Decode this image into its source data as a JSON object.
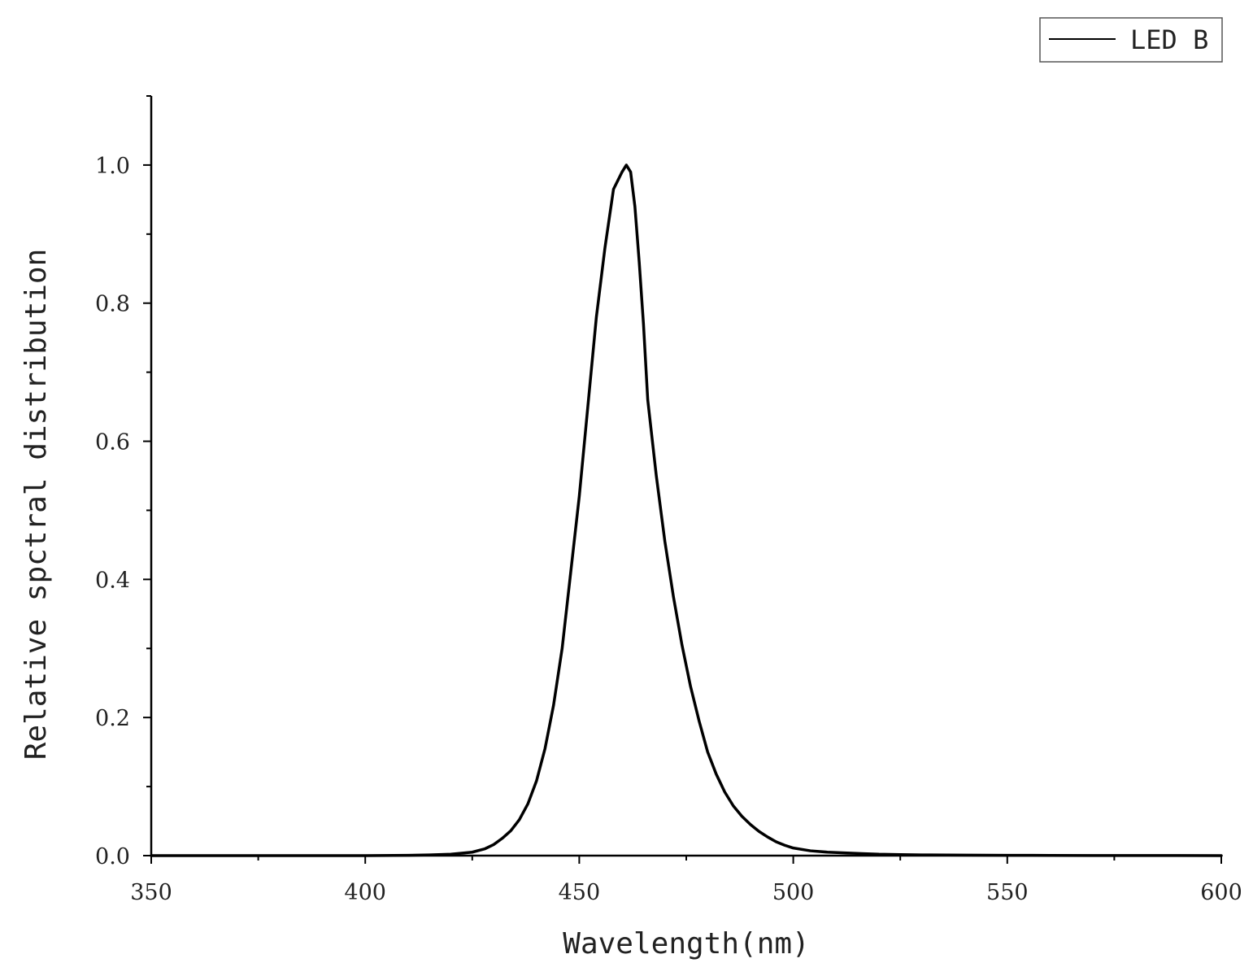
{
  "chart_data": {
    "type": "line",
    "xlabel": "Wavelength(nm)",
    "ylabel": "Relative spctral distribution",
    "xlim": [
      350,
      600
    ],
    "ylim": [
      0,
      1.1
    ],
    "x_ticks": [
      350,
      400,
      450,
      500,
      550,
      600
    ],
    "x_tick_labels": [
      "350",
      "400",
      "450",
      "500",
      "550",
      "600"
    ],
    "y_ticks": [
      0,
      0.2,
      0.4,
      0.6,
      0.8,
      1.0
    ],
    "y_tick_labels": [
      "0.0",
      "0.2",
      "0.4",
      "0.6",
      "0.8",
      "1.0"
    ],
    "grid": false,
    "legend_position": "top-right",
    "series": [
      {
        "name": "LED B",
        "color": "#000000",
        "x": [
          350,
          400,
          410,
          415,
          420,
          425,
          428,
          430,
          432,
          434,
          436,
          438,
          440,
          442,
          444,
          446,
          448,
          450,
          452,
          454,
          456,
          458,
          460,
          461,
          462,
          463,
          464,
          465,
          466,
          468,
          470,
          472,
          474,
          476,
          478,
          480,
          482,
          484,
          486,
          488,
          490,
          492,
          494,
          496,
          498,
          500,
          504,
          508,
          512,
          516,
          520,
          525,
          530,
          540,
          550,
          560,
          570,
          580,
          590,
          600
        ],
        "y": [
          0,
          0,
          0.0005,
          0.001,
          0.002,
          0.005,
          0.01,
          0.016,
          0.025,
          0.036,
          0.052,
          0.075,
          0.108,
          0.155,
          0.218,
          0.3,
          0.41,
          0.52,
          0.65,
          0.78,
          0.88,
          0.965,
          0.99,
          1.0,
          0.99,
          0.94,
          0.86,
          0.77,
          0.66,
          0.55,
          0.455,
          0.375,
          0.305,
          0.245,
          0.195,
          0.15,
          0.118,
          0.092,
          0.072,
          0.057,
          0.045,
          0.035,
          0.027,
          0.02,
          0.015,
          0.011,
          0.007,
          0.005,
          0.004,
          0.003,
          0.002,
          0.0015,
          0.001,
          0.0008,
          0.0005,
          0.0003,
          0.0002,
          0.0001,
          0.0001,
          0
        ]
      }
    ]
  }
}
